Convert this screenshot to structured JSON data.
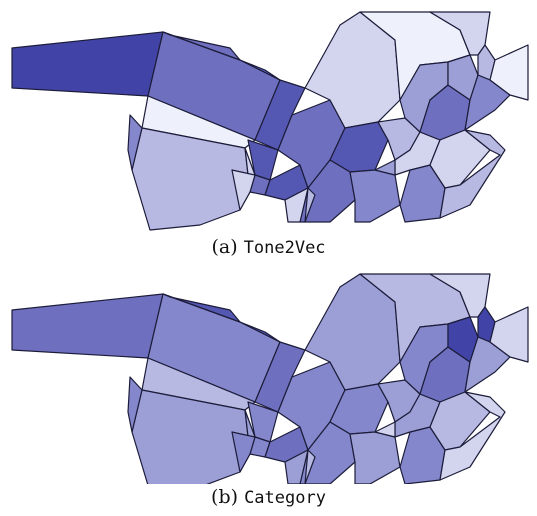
{
  "palette": {
    "stroke": "#1c1c3a",
    "shades": [
      "#eef0fb",
      "#d3d5ef",
      "#b7b9e2",
      "#9c9fd6",
      "#8487cb",
      "#6e70bf",
      "#5558b3",
      "#4144a6"
    ]
  },
  "panels": [
    {
      "id": "a",
      "caption_prefix": "(a) ",
      "caption_name": "Tone2Vec",
      "cell_shades": [
        7,
        5,
        6,
        0,
        2,
        6,
        1,
        5,
        6,
        5,
        1,
        6,
        5,
        1,
        4,
        2,
        0,
        4,
        1,
        3,
        5,
        3,
        1,
        2,
        4,
        1,
        2,
        0,
        2,
        3,
        1,
        4,
        5,
        6
      ]
    },
    {
      "id": "b",
      "caption_prefix": "(b) ",
      "caption_name": "Category",
      "cell_shades": [
        5,
        4,
        5,
        2,
        3,
        4,
        3,
        4,
        5,
        4,
        3,
        4,
        4,
        3,
        3,
        3,
        2,
        4,
        3,
        4,
        5,
        7,
        1,
        7,
        3,
        2,
        1,
        1,
        2,
        1,
        4,
        4,
        6,
        6
      ]
    }
  ]
}
